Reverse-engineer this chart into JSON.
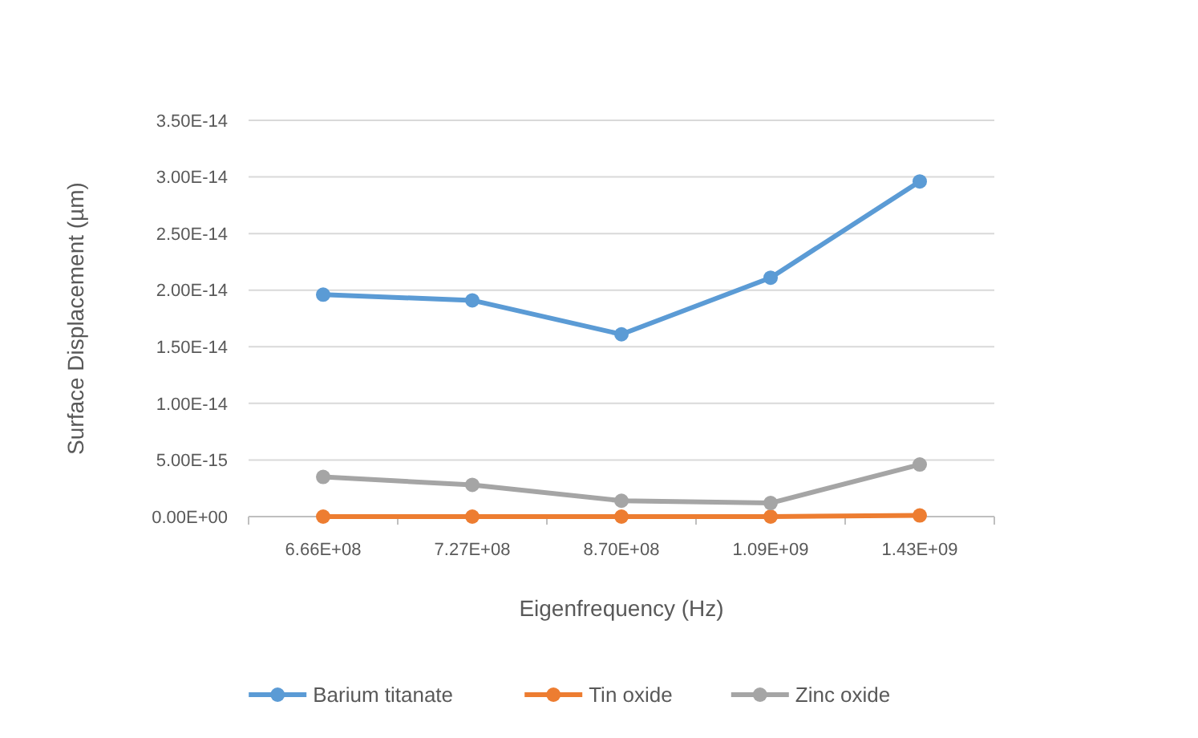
{
  "chart_data": {
    "type": "line",
    "xlabel": "Eigenfrequency (Hz)",
    "ylabel": "Surface Displacement (µm)",
    "categories": [
      "6.66E+08",
      "7.27E+08",
      "8.70E+08",
      "1.09E+09",
      "1.43E+09"
    ],
    "series": [
      {
        "name": "Barium titanate",
        "color": "#5b9bd5",
        "values": [
          1.96e-14,
          1.91e-14,
          1.61e-14,
          2.11e-14,
          2.96e-14
        ]
      },
      {
        "name": "Tin oxide",
        "color": "#ed7d31",
        "values": [
          0,
          0,
          0,
          0,
          1e-16
        ]
      },
      {
        "name": "Zinc oxide",
        "color": "#a5a5a5",
        "values": [
          3.5e-15,
          2.8e-15,
          1.4e-15,
          1.2e-15,
          4.6e-15
        ]
      }
    ],
    "ylim": [
      0,
      3.5e-14
    ],
    "yticks": [
      {
        "value": 0,
        "label": "0.00E+00"
      },
      {
        "value": 5e-15,
        "label": "5.00E-15"
      },
      {
        "value": 1e-14,
        "label": "1.00E-14"
      },
      {
        "value": 1.5e-14,
        "label": "1.50E-14"
      },
      {
        "value": 2e-14,
        "label": "2.00E-14"
      },
      {
        "value": 2.5e-14,
        "label": "2.50E-14"
      },
      {
        "value": 3e-14,
        "label": "3.00E-14"
      },
      {
        "value": 3.5e-14,
        "label": "3.50E-14"
      }
    ],
    "grid": "y",
    "legend": "bottom",
    "marker": "circle",
    "line_style": "solid"
  }
}
